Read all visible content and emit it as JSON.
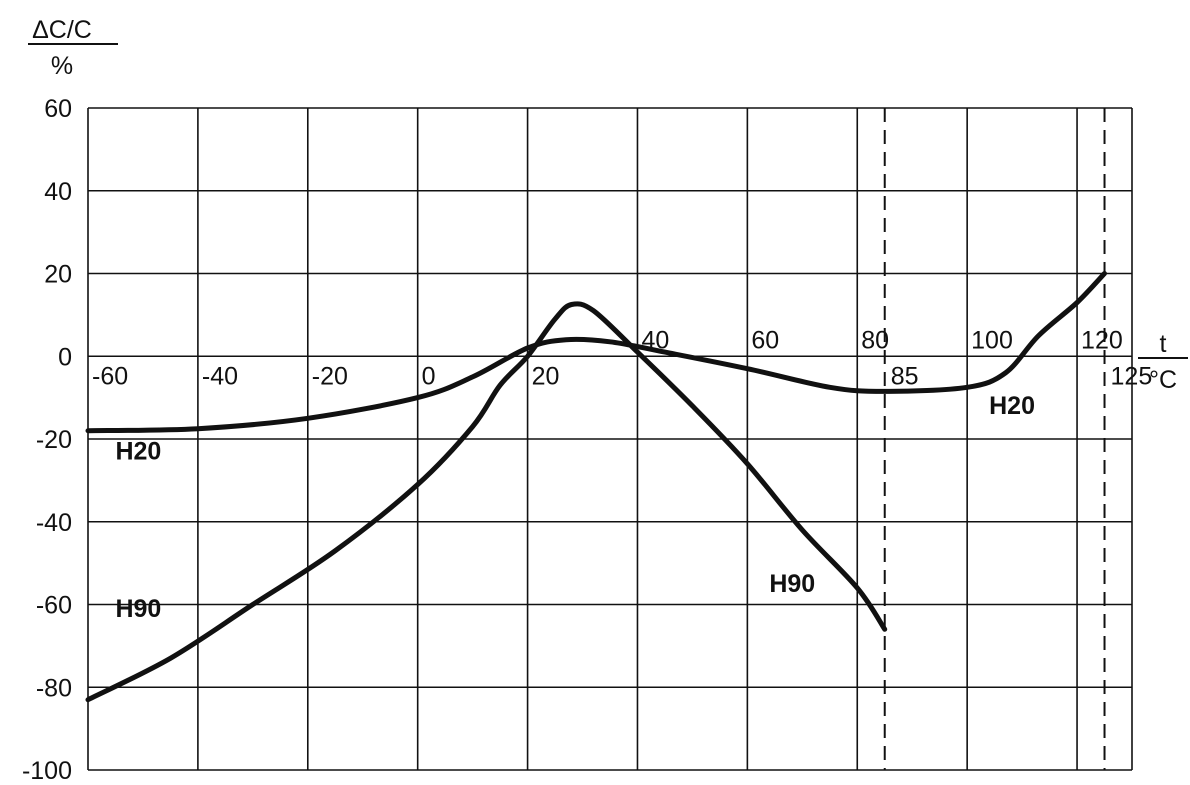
{
  "chart_data": {
    "type": "line",
    "ylabel_top": "ΔC/C",
    "ylabel_bottom": "%",
    "xlabel_top": "t",
    "xlabel_bottom": "°C",
    "y_ticks": [
      "60",
      "40",
      "20",
      "0",
      "-20",
      "-40",
      "-60",
      "-80",
      "-100"
    ],
    "x_ticks": [
      "-60",
      "-40",
      "-20",
      "0",
      "20",
      "40",
      "60",
      "80",
      "100",
      "120"
    ],
    "x_extra_ticks": [
      "85",
      "125"
    ],
    "ylim": [
      -100,
      60
    ],
    "xlim": [
      -60,
      130
    ],
    "x_grid": [
      -60,
      -40,
      -20,
      0,
      20,
      40,
      60,
      80,
      100,
      120
    ],
    "x_dashed": [
      85,
      125
    ],
    "series": [
      {
        "name": "H20",
        "points": [
          [
            -60,
            -18
          ],
          [
            -40,
            -17.5
          ],
          [
            -20,
            -15
          ],
          [
            0,
            -10
          ],
          [
            10,
            -5
          ],
          [
            20,
            2
          ],
          [
            27,
            4
          ],
          [
            35,
            3.5
          ],
          [
            45,
            1
          ],
          [
            60,
            -3
          ],
          [
            75,
            -7.5
          ],
          [
            85,
            -8.5
          ],
          [
            100,
            -7.5
          ],
          [
            107,
            -4
          ],
          [
            113,
            5
          ],
          [
            120,
            13
          ],
          [
            125,
            20
          ]
        ]
      },
      {
        "name": "H90",
        "points": [
          [
            -60,
            -83
          ],
          [
            -45,
            -73
          ],
          [
            -30,
            -60
          ],
          [
            -15,
            -47
          ],
          [
            0,
            -31
          ],
          [
            10,
            -17
          ],
          [
            15,
            -7
          ],
          [
            20,
            0
          ],
          [
            25,
            9
          ],
          [
            28,
            12.5
          ],
          [
            32,
            11
          ],
          [
            40,
            1
          ],
          [
            50,
            -12
          ],
          [
            60,
            -26
          ],
          [
            70,
            -42
          ],
          [
            80,
            -56
          ],
          [
            85,
            -66
          ]
        ]
      }
    ],
    "series_labels": [
      {
        "text": "H20",
        "x": -55,
        "y": -25
      },
      {
        "text": "H90",
        "x": -55,
        "y": -63
      },
      {
        "text": "H90",
        "x": 64,
        "y": -57
      },
      {
        "text": "H20",
        "x": 104,
        "y": -14
      }
    ],
    "grid": true
  }
}
